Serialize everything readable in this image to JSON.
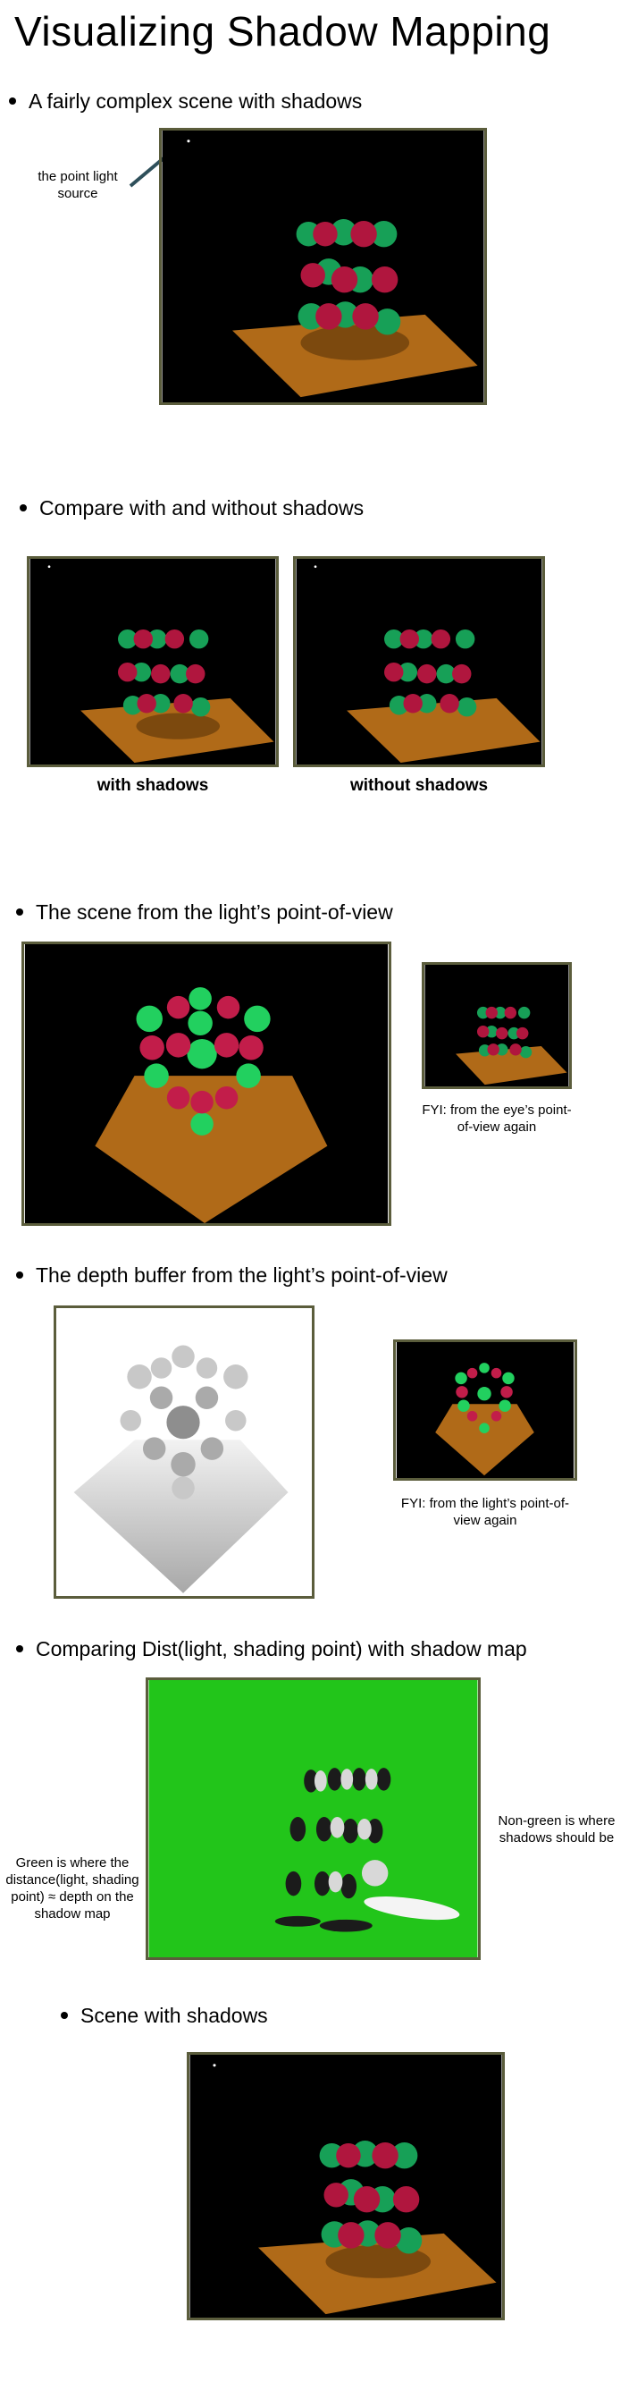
{
  "title": "Visualizing Shadow Mapping",
  "sections": {
    "s1": {
      "bullet": "A fairly complex scene with shadows",
      "annotation": "the point light source"
    },
    "s2": {
      "bullet": "Compare with and without shadows",
      "caption_left": "with shadows",
      "caption_right": "without shadows"
    },
    "s3": {
      "bullet": "The scene from the light’s point-of-view",
      "fyi": "FYI: from the eye’s point-of-view again"
    },
    "s4": {
      "bullet": "The depth buffer from the light’s point-of-view",
      "fyi": "FYI: from the light’s point-of-view again"
    },
    "s5": {
      "bullet": "Comparing Dist(light, shading point) with shadow map",
      "left_note": "Green is where the distance(light, shading point) ≈ depth on the shadow map",
      "right_note": "Non-green is where shadows should be"
    },
    "s6": {
      "bullet": "Scene with shadows"
    }
  },
  "colors": {
    "frame": "#5b5d3c",
    "floor": "#b06a18",
    "sphere_red": "#b0163e",
    "sphere_green": "#17a057",
    "comparison_bg": "#22c51a"
  }
}
